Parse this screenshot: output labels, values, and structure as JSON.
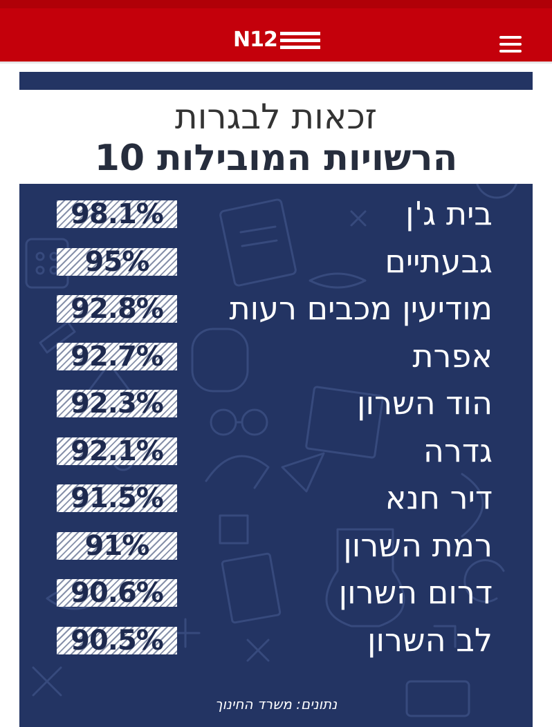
{
  "header": {
    "logo_text": "N12",
    "menu_icon": "hamburger-menu-icon",
    "background_color": "#c4000b"
  },
  "infographic": {
    "title_line1": "זכאות לבגרות",
    "title_line2": "10 הרשויות המובילות",
    "panel_color": "#233463",
    "rows": [
      {
        "name": "בית ג'ן",
        "value": "98.1%"
      },
      {
        "name": "גבעתיים",
        "value": "95%"
      },
      {
        "name": "מודיעין מכבים רעות",
        "value": "92.8%"
      },
      {
        "name": "אפרת",
        "value": "92.7%"
      },
      {
        "name": "הוד השרון",
        "value": "92.3%"
      },
      {
        "name": "גדרה",
        "value": "92.1%"
      },
      {
        "name": "דיר חנא",
        "value": "91.5%"
      },
      {
        "name": "רמת השרון",
        "value": "91%"
      },
      {
        "name": "דרום השרון",
        "value": "90.6%"
      },
      {
        "name": "לב השרון",
        "value": "90.5%"
      }
    ],
    "source": "נתונים: משרד החינוך"
  }
}
